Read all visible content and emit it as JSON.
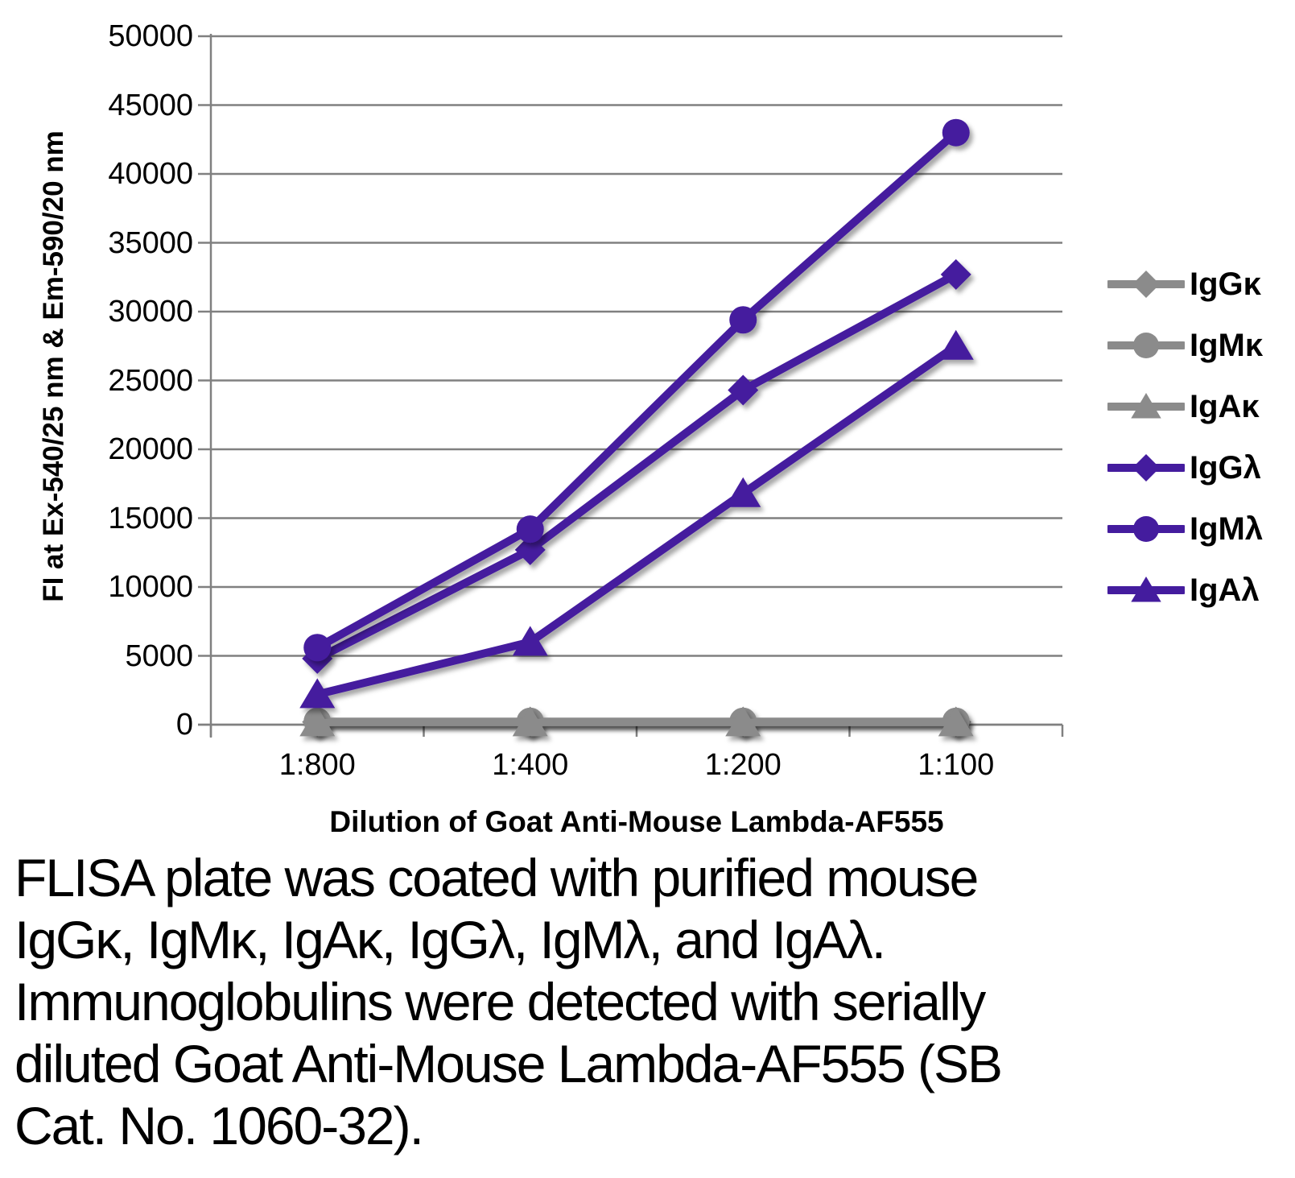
{
  "colors": {
    "purple": "#441C9E",
    "gray": "#8B8B8B",
    "grid": "#808080",
    "text": "#000000",
    "background": "#FFFFFF"
  },
  "chart_data": {
    "type": "line",
    "title": "",
    "xlabel": "Dilution of Goat Anti-Mouse Lambda-AF555",
    "ylabel": "FI at Ex-540/25 nm & Em-590/20 nm",
    "categories": [
      "1:800",
      "1:400",
      "1:200",
      "1:100"
    ],
    "series": [
      {
        "name": "IgGκ",
        "marker": "diamond",
        "color": "#8B8B8B",
        "values": [
          200,
          200,
          200,
          200
        ]
      },
      {
        "name": "IgMκ",
        "marker": "circle",
        "color": "#8B8B8B",
        "values": [
          250,
          250,
          250,
          250
        ]
      },
      {
        "name": "IgAκ",
        "marker": "triangle",
        "color": "#8B8B8B",
        "values": [
          150,
          150,
          150,
          150
        ]
      },
      {
        "name": "IgGλ",
        "marker": "diamond",
        "color": "#441C9E",
        "values": [
          4800,
          12700,
          24300,
          32700
        ]
      },
      {
        "name": "IgMλ",
        "marker": "circle",
        "color": "#441C9E",
        "values": [
          5600,
          14200,
          29400,
          43000
        ]
      },
      {
        "name": "IgAλ",
        "marker": "triangle",
        "color": "#441C9E",
        "values": [
          2200,
          6000,
          16800,
          27500
        ]
      }
    ],
    "ylim": [
      0,
      50000
    ],
    "ytick_step": 5000,
    "grid": "horizontal",
    "legend_position": "right"
  },
  "caption": {
    "lines": [
      "FLISA plate was coated with purified mouse",
      "IgGκ, IgMκ, IgAκ, IgGλ, IgMλ, and IgAλ.",
      "Immunoglobulins were detected with serially",
      "diluted Goat Anti-Mouse Lambda-AF555 (SB",
      "Cat. No. 1060-32)."
    ]
  }
}
